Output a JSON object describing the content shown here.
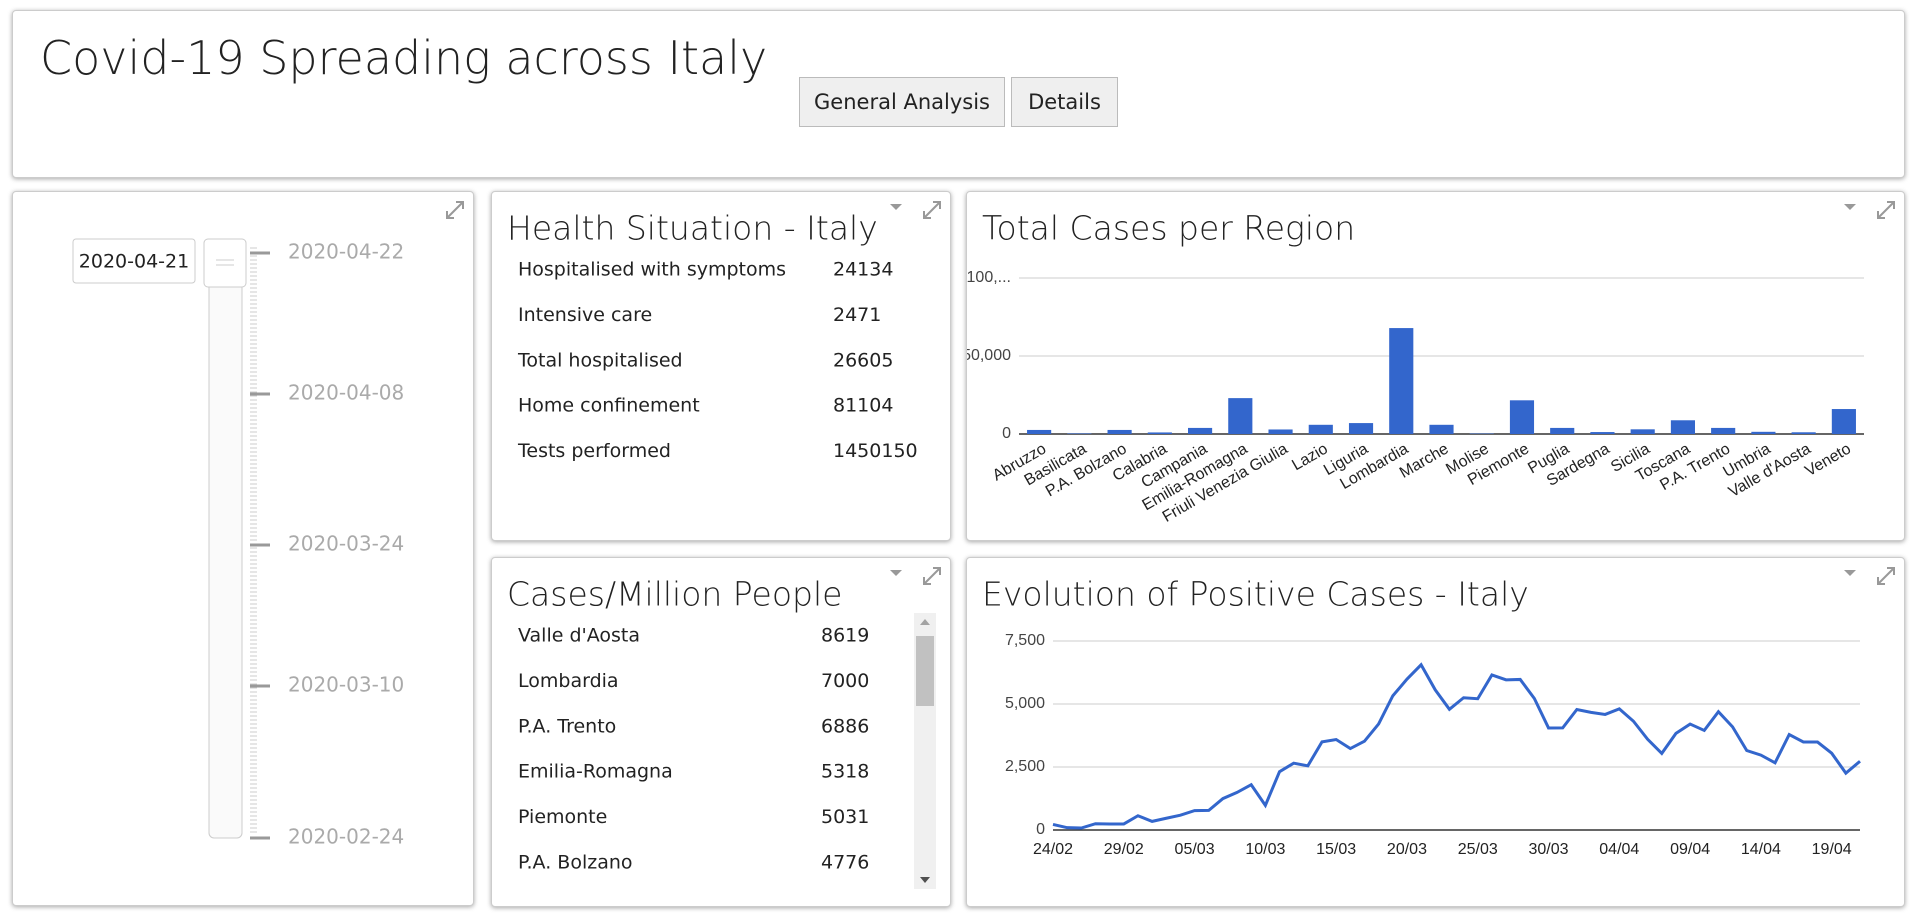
{
  "header": {
    "title": "Covid-19 Spreading across Italy",
    "buttons": [
      "General Analysis",
      "Details"
    ]
  },
  "slider": {
    "value": "2020-04-21",
    "labels": [
      "2020-04-22",
      "2020-04-08",
      "2020-03-24",
      "2020-03-10",
      "2020-02-24"
    ]
  },
  "health_table": {
    "title": "Health Situation - Italy",
    "rows": [
      [
        "Hospitalised with symptoms",
        "24134"
      ],
      [
        "Intensive care",
        "2471"
      ],
      [
        "Total hospitalised",
        "26605"
      ],
      [
        "Home confinement",
        "81104"
      ],
      [
        "Tests performed",
        "1450150"
      ]
    ]
  },
  "cases_table": {
    "title": "Cases/Million People",
    "rows": [
      [
        "Valle d'Aosta",
        "8619"
      ],
      [
        "Lombardia",
        "7000"
      ],
      [
        "P.A. Trento",
        "6886"
      ],
      [
        "Emilia-Romagna",
        "5318"
      ],
      [
        "Piemonte",
        "5031"
      ],
      [
        "P.A. Bolzano",
        "4776"
      ]
    ]
  },
  "chart_data": [
    {
      "type": "bar",
      "title": "Total Cases per Region",
      "color": "#3366cc",
      "grid": true,
      "categories": [
        "Abruzzo",
        "Basilicata",
        "P.A. Bolzano",
        "Calabria",
        "Campania",
        "Emilia-Romagna",
        "Friuli Venezia Giulia",
        "Lazio",
        "Liguria",
        "Lombardia",
        "Marche",
        "Molise",
        "Piemonte",
        "Puglia",
        "Sardegna",
        "Sicilia",
        "Toscana",
        "P.A. Trento",
        "Umbria",
        "Valle d'Aosta",
        "Veneto"
      ],
      "values": [
        2600,
        350,
        2600,
        1000,
        3900,
        23000,
        2900,
        5900,
        7000,
        67900,
        5900,
        280,
        21600,
        3900,
        1250,
        3000,
        8800,
        3900,
        1400,
        1100,
        16000
      ],
      "ylim": [
        0,
        100000
      ],
      "yticks": [
        0,
        {
          "value": 50000,
          "label": "50,000"
        },
        {
          "value": 100000,
          "label": "100,..."
        }
      ]
    },
    {
      "type": "line",
      "title": "Evolution of Positive Cases - Italy",
      "color": "#3366cc",
      "grid": true,
      "categories": [
        "24/02",
        null,
        null,
        null,
        null,
        "29/02",
        null,
        null,
        null,
        null,
        "05/03",
        null,
        null,
        null,
        null,
        "10/03",
        null,
        null,
        null,
        null,
        "15/03",
        null,
        null,
        null,
        null,
        "20/03",
        null,
        null,
        null,
        null,
        "25/03",
        null,
        null,
        null,
        null,
        "30/03",
        null,
        null,
        null,
        null,
        "04/04",
        null,
        null,
        null,
        null,
        "09/04",
        null,
        null,
        null,
        null,
        "14/04",
        null,
        null,
        null,
        null,
        "19/04",
        null,
        null
      ],
      "values": [
        221,
        93,
        78,
        250,
        238,
        240,
        566,
        342,
        466,
        587,
        769,
        778,
        1247,
        1492,
        1797,
        977,
        2313,
        2651,
        2547,
        3497,
        3590,
        3233,
        3526,
        4207,
        5322,
        5986,
        6557,
        5560,
        4789,
        5249,
        5210,
        6153,
        5959,
        5974,
        5217,
        4050,
        4053,
        4782,
        4668,
        4585,
        4805,
        4316,
        3599,
        3039,
        3836,
        4204,
        3951,
        4694,
        4092,
        3153,
        2972,
        2667,
        3786,
        3493,
        3491,
        3047,
        2256,
        2729
      ],
      "ylim": [
        0,
        7500
      ],
      "yticks": [
        0,
        {
          "value": 2500,
          "label": "2,500"
        },
        {
          "value": 5000,
          "label": "5,000"
        },
        {
          "value": 7500,
          "label": "7,500"
        }
      ]
    }
  ]
}
